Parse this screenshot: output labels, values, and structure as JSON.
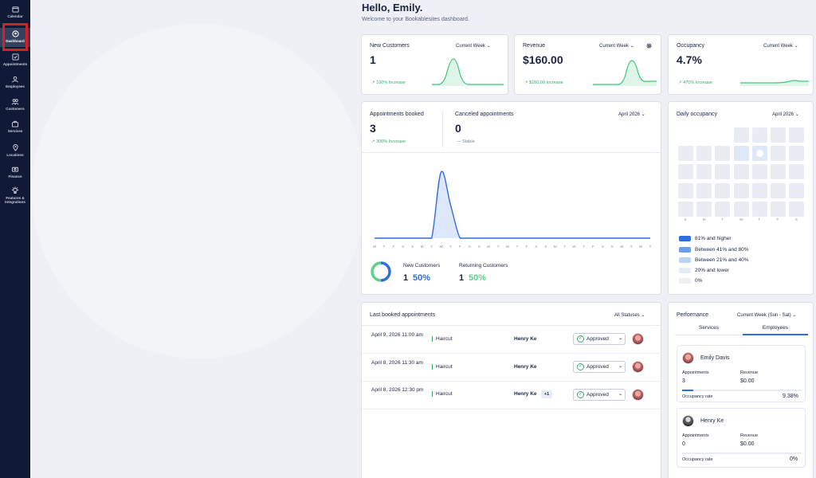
{
  "sidebar": {
    "items": [
      {
        "label": "Calendar",
        "icon": "calendar-icon"
      },
      {
        "label": "Dashboard",
        "icon": "dashboard-icon",
        "active": true
      },
      {
        "label": "Appointments",
        "icon": "appointments-icon"
      },
      {
        "label": "Employees",
        "icon": "employees-icon"
      },
      {
        "label": "Customers",
        "icon": "customers-icon"
      },
      {
        "label": "Services",
        "icon": "services-icon"
      },
      {
        "label": "Locations",
        "icon": "locations-icon"
      },
      {
        "label": "Finance",
        "icon": "finance-icon"
      },
      {
        "label": "Features & Integrations",
        "icon": "features-icon"
      }
    ]
  },
  "header": {
    "greeting": "Hello, Emily.",
    "welcome": "Welcome to your Bookablesites dashboard."
  },
  "kpis": {
    "customers": {
      "title": "New Customers",
      "period": "Current Week",
      "value": "1",
      "change": "100% Increase"
    },
    "revenue": {
      "title": "Revenue",
      "period": "Current Week",
      "value": "$160.00",
      "change": "$160.00 Increase"
    },
    "occupancy": {
      "title": "Occupancy",
      "period": "Current Week",
      "value": "4.7%",
      "change": "470% Increase"
    }
  },
  "appointments_card": {
    "booked_title": "Appointments booked",
    "booked_value": "3",
    "booked_change": "300% Increase",
    "canceled_title": "Canceled appointments",
    "canceled_value": "0",
    "canceled_change": "— Stable",
    "period": "April 2026",
    "new_customers_label": "New Customers",
    "new_customers_count": "1",
    "new_customers_pct": "50%",
    "returning_label": "Returning Customers",
    "returning_count": "1",
    "returning_pct": "50%"
  },
  "chart_data": {
    "type": "line",
    "x": [
      "W",
      "T",
      "F",
      "S",
      "S",
      "M",
      "T",
      "W",
      "T",
      "F",
      "S",
      "S",
      "M",
      "T",
      "W",
      "T",
      "F",
      "S",
      "S",
      "M",
      "T",
      "W",
      "T",
      "F",
      "S",
      "S",
      "M",
      "T",
      "W",
      "T"
    ],
    "values": [
      0,
      0,
      0,
      0,
      0,
      0,
      0,
      2,
      1,
      0,
      0,
      0,
      0,
      0,
      0,
      0,
      0,
      0,
      0,
      0,
      0,
      0,
      0,
      0,
      0,
      0,
      0,
      0,
      0,
      0
    ],
    "ylim": [
      0,
      2
    ],
    "grid": false
  },
  "daily_occupancy": {
    "title": "Daily occupancy",
    "period": "April 2026",
    "weekdays": [
      "S",
      "M",
      "T",
      "W",
      "T",
      "F",
      "S"
    ],
    "legend": [
      {
        "label": "81% and higher",
        "color": "#2f6fdc"
      },
      {
        "label": "Between 41% and 80%",
        "color": "#6a9ee6"
      },
      {
        "label": "Between 21% and 40%",
        "color": "#bcd3f3"
      },
      {
        "label": "20% and lower",
        "color": "#e6ecf6"
      },
      {
        "label": "0%",
        "color": "#eef0f4"
      }
    ]
  },
  "last_booked": {
    "title": "Last booked appointments",
    "filter": "All Statuses",
    "rows": [
      {
        "date": "April 9, 2026 11:00 am",
        "service": "Haircut",
        "employee": "Henry Ke",
        "extra": "",
        "status": "Approved"
      },
      {
        "date": "April 8, 2026 11:30 am",
        "service": "Haircut",
        "employee": "Henry Ke",
        "extra": "",
        "status": "Approved"
      },
      {
        "date": "April 8, 2026 12:30 pm",
        "service": "Haircut",
        "employee": "Henry Ke",
        "extra": "+1",
        "status": "Approved"
      }
    ]
  },
  "performance": {
    "title": "Performance",
    "period": "Current Week (Sun - Sat)",
    "tabs": [
      "Services",
      "Employees"
    ],
    "employees": [
      {
        "name": "Emily Davis",
        "appointments_label": "Appointments",
        "appointments": "3",
        "revenue_label": "Revenue",
        "revenue": "$0.00",
        "rate_label": "Occupancy rate",
        "rate": "9.38%",
        "rate_value": 9.38
      },
      {
        "name": "Henry Ke",
        "appointments_label": "Appointments",
        "appointments": "0",
        "revenue_label": "Revenue",
        "revenue": "$0.00",
        "rate_label": "Occupancy rate",
        "rate": "0%",
        "rate_value": 0
      }
    ]
  }
}
